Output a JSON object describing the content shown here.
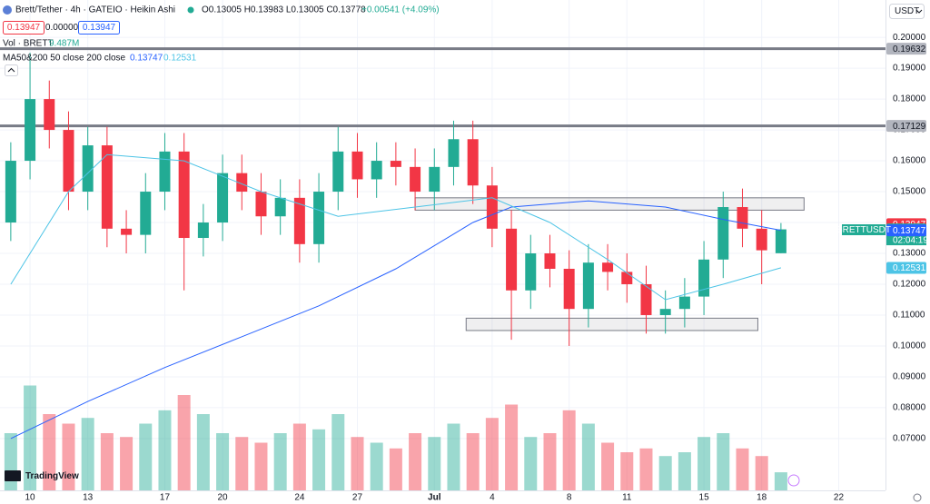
{
  "chart_data": {
    "type": "candlestick",
    "header": {
      "title": "Brett/Tether · 4h · GATEIO · Heikin Ashi",
      "quote": "O0.13005 H0.13983 L0.13005 C0.13778",
      "change": "+0.00541 (+4.09%)",
      "boxes": [
        "0.13947",
        "0.00000",
        "0.13947"
      ],
      "vol_label": "Vol · BRETT",
      "vol_value": "9.487M",
      "ma_label": "MA50&200 50 close 200 close",
      "ma_values": [
        "0.13747",
        "0.12531"
      ],
      "currency": "USDT",
      "symbol": "BRETTUSDT",
      "countdown": "02:04:19",
      "logo": "TradingView"
    },
    "x": [
      -1,
      0,
      1,
      2,
      3,
      4,
      5,
      6,
      7,
      8,
      9,
      10,
      11,
      12,
      13,
      14,
      15,
      16,
      17,
      18,
      19,
      20,
      21,
      22,
      23,
      24,
      25,
      26,
      27,
      28,
      29,
      30,
      31,
      32,
      33,
      34,
      35,
      36,
      37,
      38,
      39
    ],
    "open": [
      0.14,
      0.16,
      0.18,
      0.17,
      0.15,
      0.165,
      0.138,
      0.136,
      0.15,
      0.163,
      0.135,
      0.14,
      0.156,
      0.15,
      0.142,
      0.148,
      0.133,
      0.15,
      0.163,
      0.154,
      0.16,
      0.158,
      0.15,
      0.158,
      0.167,
      0.152,
      0.138,
      0.118,
      0.13,
      0.125,
      0.112,
      0.127,
      0.124,
      0.12,
      0.11,
      0.112,
      0.116,
      0.128,
      0.145,
      0.138,
      0.13005
    ],
    "high": [
      0.166,
      0.195,
      0.186,
      0.176,
      0.171,
      0.171,
      0.144,
      0.156,
      0.169,
      0.169,
      0.146,
      0.162,
      0.162,
      0.156,
      0.154,
      0.154,
      0.156,
      0.171,
      0.169,
      0.166,
      0.166,
      0.164,
      0.164,
      0.173,
      0.173,
      0.158,
      0.144,
      0.136,
      0.136,
      0.131,
      0.133,
      0.133,
      0.13,
      0.126,
      0.118,
      0.122,
      0.134,
      0.15,
      0.151,
      0.144,
      0.13983
    ],
    "low": [
      0.134,
      0.154,
      0.164,
      0.144,
      0.144,
      0.132,
      0.13,
      0.13,
      0.144,
      0.118,
      0.129,
      0.134,
      0.144,
      0.136,
      0.136,
      0.127,
      0.127,
      0.144,
      0.148,
      0.148,
      0.152,
      0.144,
      0.144,
      0.152,
      0.146,
      0.132,
      0.102,
      0.112,
      0.119,
      0.1,
      0.106,
      0.118,
      0.114,
      0.104,
      0.104,
      0.106,
      0.11,
      0.122,
      0.132,
      0.12,
      0.13005
    ],
    "close": [
      0.16,
      0.18,
      0.17,
      0.15,
      0.165,
      0.138,
      0.136,
      0.15,
      0.163,
      0.135,
      0.14,
      0.156,
      0.15,
      0.142,
      0.148,
      0.133,
      0.15,
      0.163,
      0.154,
      0.16,
      0.158,
      0.15,
      0.158,
      0.167,
      0.152,
      0.138,
      0.118,
      0.13,
      0.125,
      0.112,
      0.127,
      0.124,
      0.12,
      0.11,
      0.112,
      0.116,
      0.128,
      0.145,
      0.138,
      0.131,
      0.13778
    ],
    "volume": [
      30,
      55,
      40,
      35,
      38,
      30,
      28,
      35,
      42,
      50,
      40,
      30,
      28,
      25,
      30,
      35,
      32,
      40,
      28,
      25,
      22,
      30,
      28,
      35,
      30,
      38,
      45,
      28,
      30,
      42,
      35,
      25,
      20,
      22,
      18,
      20,
      28,
      30,
      22,
      18,
      9.487
    ],
    "up_color": "#22ab94",
    "down_color": "#f23645",
    "ma_lines": [
      {
        "color": "#2962ff",
        "x": [
          -1,
          3,
          7,
          11,
          15,
          19,
          23,
          25,
          29,
          33,
          36,
          39
        ],
        "values": [
          0.07,
          0.082,
          0.093,
          0.103,
          0.113,
          0.125,
          0.14,
          0.145,
          0.147,
          0.145,
          0.141,
          0.13747
        ]
      },
      {
        "color": "#4dc4e6",
        "x": [
          -1,
          2,
          4,
          8,
          12,
          16,
          20,
          24,
          27,
          30,
          33,
          36,
          39
        ],
        "values": [
          0.12,
          0.15,
          0.162,
          0.16,
          0.15,
          0.142,
          0.145,
          0.148,
          0.14,
          0.128,
          0.115,
          0.12,
          0.12531
        ]
      }
    ],
    "hlines": [
      0.19632,
      0.17129
    ],
    "zones": [
      {
        "x0": 20.0,
        "x1": 40.2,
        "top": 0.148,
        "bottom": 0.144
      },
      {
        "x0": 22.65,
        "x1": 37.8,
        "top": 0.109,
        "bottom": 0.105
      }
    ],
    "price_labels": [
      {
        "value": 0.19632,
        "color": "#b2b5be"
      },
      {
        "value": 0.17129,
        "color": "#b2b5be"
      },
      {
        "value": 0.13947,
        "color": "#f23645"
      },
      {
        "value": 0.13778,
        "color": "#22ab94"
      },
      {
        "value": 0.13747,
        "color": "#2962ff"
      },
      {
        "value": 0.12531,
        "color": "#4dc4e6"
      }
    ],
    "xlim": [
      -1.56,
      44.43
    ],
    "xticks": [
      {
        "value": 0,
        "label": "10"
      },
      {
        "value": 3,
        "label": "13"
      },
      {
        "value": 7,
        "label": "17"
      },
      {
        "value": 10,
        "label": "20"
      },
      {
        "value": 14,
        "label": "24"
      },
      {
        "value": 17,
        "label": "27"
      },
      {
        "value": 21,
        "label": "Jul"
      },
      {
        "value": 24,
        "label": "4"
      },
      {
        "value": 28,
        "label": "8"
      },
      {
        "value": 31,
        "label": "11"
      },
      {
        "value": 35,
        "label": "15"
      },
      {
        "value": 38,
        "label": "18"
      },
      {
        "value": 42,
        "label": "22"
      }
    ],
    "ylim": [
      0.0532,
      0.2121
    ],
    "yticks": [
      {
        "value": 0.2,
        "label": "0.20000"
      },
      {
        "value": 0.19,
        "label": "0.19000"
      },
      {
        "value": 0.18,
        "label": "0.18000"
      },
      {
        "value": 0.17,
        "label": "0.17000"
      },
      {
        "value": 0.16,
        "label": "0.16000"
      },
      {
        "value": 0.15,
        "label": "0.15000"
      },
      {
        "value": 0.14,
        "label": "0.14000"
      },
      {
        "value": 0.13,
        "label": "0.13000"
      },
      {
        "value": 0.12,
        "label": "0.12000"
      },
      {
        "value": 0.11,
        "label": "0.11000"
      },
      {
        "value": 0.1,
        "label": "0.10000"
      },
      {
        "value": 0.09,
        "label": "0.09000"
      },
      {
        "value": 0.08,
        "label": "0.08000"
      },
      {
        "value": 0.07,
        "label": "0.07000"
      }
    ],
    "grid": true
  }
}
